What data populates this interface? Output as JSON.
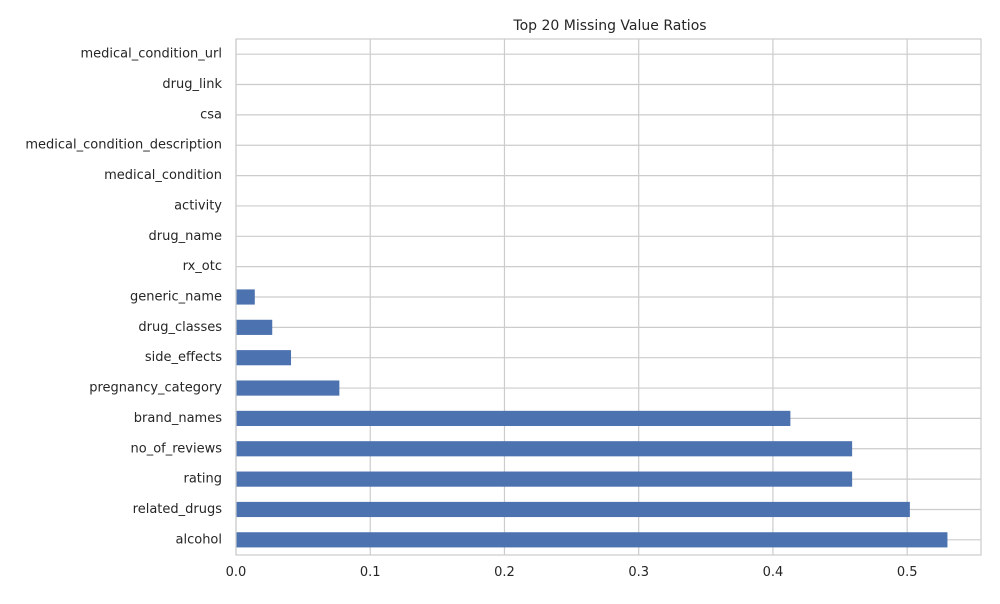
{
  "chart_data": {
    "type": "bar",
    "orientation": "horizontal",
    "title": "Top 20 Missing Value Ratios",
    "xlabel": "",
    "ylabel": "",
    "xlim": [
      0,
      0.555
    ],
    "x_ticks": [
      "0.0",
      "0.1",
      "0.2",
      "0.3",
      "0.4",
      "0.5"
    ],
    "x_tick_values": [
      0,
      0.1,
      0.2,
      0.3,
      0.4,
      0.5
    ],
    "grid": true,
    "bar_color": "#4c72b0",
    "categories": [
      "medical_condition_url",
      "drug_link",
      "csa",
      "medical_condition_description",
      "medical_condition",
      "activity",
      "drug_name",
      "rx_otc",
      "generic_name",
      "drug_classes",
      "side_effects",
      "pregnancy_category",
      "brand_names",
      "no_of_reviews",
      "rating",
      "related_drugs",
      "alcohol"
    ],
    "values": [
      0,
      0,
      0,
      0,
      0,
      0,
      0,
      0,
      0.014,
      0.027,
      0.041,
      0.077,
      0.413,
      0.459,
      0.459,
      0.502,
      0.53
    ]
  }
}
